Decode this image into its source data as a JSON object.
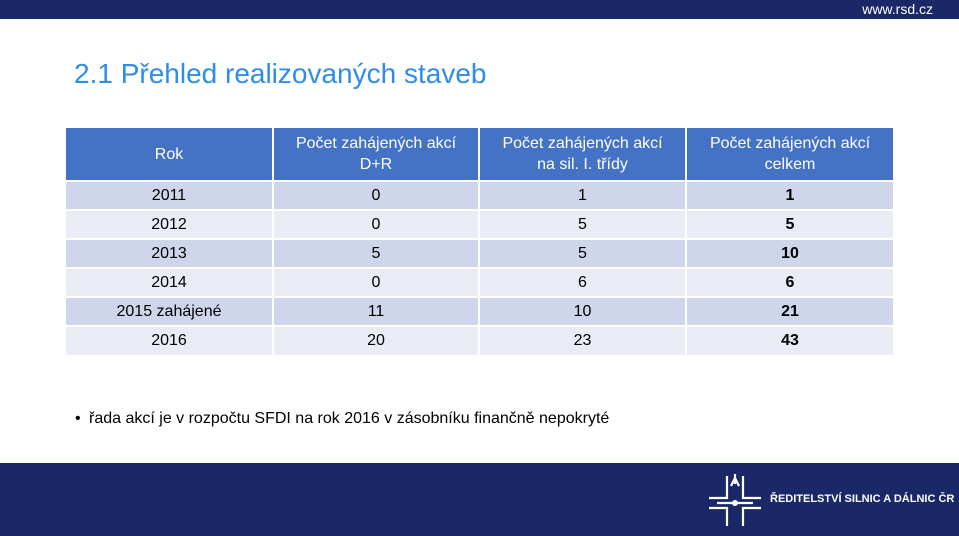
{
  "header": {
    "url": "www.rsd.cz"
  },
  "title": "2.1 Přehled realizovaných staveb",
  "table": {
    "columns": [
      {
        "line1": "Rok",
        "line2": ""
      },
      {
        "line1": "Počet zahájených akcí",
        "line2": "D+R"
      },
      {
        "line1": "Počet zahájených akcí",
        "line2": "na sil. I. třídy"
      },
      {
        "line1": "Počet zahájených akcí",
        "line2": "celkem"
      }
    ],
    "rows": [
      {
        "rok": "2011",
        "dr": "0",
        "sil": "1",
        "celkem": "1"
      },
      {
        "rok": "2012",
        "dr": "0",
        "sil": "5",
        "celkem": "5"
      },
      {
        "rok": "2013",
        "dr": "5",
        "sil": "5",
        "celkem": "10"
      },
      {
        "rok": "2014",
        "dr": "0",
        "sil": "6",
        "celkem": "6"
      },
      {
        "rok": "2015 zahájené",
        "dr": "11",
        "sil": "10",
        "celkem": "21"
      },
      {
        "rok": "2016",
        "dr": "20",
        "sil": "23",
        "celkem": "43"
      }
    ]
  },
  "note": "řada akcí je v rozpočtu SFDI na rok 2016 v zásobníku finančně nepokryté",
  "footer": {
    "logo_text": "ŘEDITELSTVÍ SILNIC A DÁLNIC ČR"
  },
  "colors": {
    "navy": "#1a2867",
    "title_blue": "#2f8de8",
    "header_blue": "#4472c4",
    "row_dark": "#cfd5ea",
    "row_light": "#e9ebf5"
  }
}
